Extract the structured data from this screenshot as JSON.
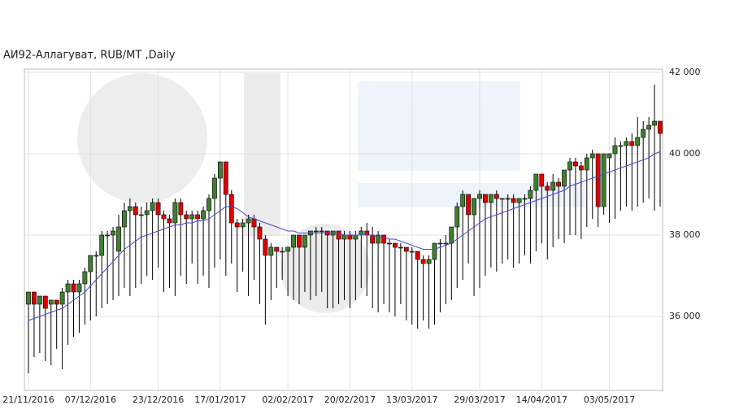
{
  "chart_data": {
    "type": "candlestick",
    "title": "АИ92-Аллагуват,  RUB/MT ,Daily",
    "ylim": [
      34180,
      42080
    ],
    "yticks": [
      {
        "value": 36000,
        "label": "36 000"
      },
      {
        "value": 38000,
        "label": "38 000"
      },
      {
        "value": 40000,
        "label": "40 000"
      },
      {
        "value": 42000,
        "label": "42 000"
      }
    ],
    "grid": true,
    "up_color": "#3f7f2f",
    "down_color": "#e00000",
    "ma_color": "#4848d0",
    "categories": [
      "21/11/2016",
      null,
      null,
      null,
      null,
      null,
      null,
      null,
      null,
      null,
      null,
      "07/12/2016",
      null,
      null,
      null,
      null,
      null,
      null,
      null,
      null,
      null,
      null,
      null,
      "23/12/2016",
      null,
      null,
      null,
      null,
      null,
      null,
      null,
      null,
      null,
      null,
      "17/01/2017",
      null,
      null,
      null,
      null,
      null,
      null,
      null,
      null,
      null,
      null,
      null,
      "02/02/2017",
      null,
      null,
      null,
      null,
      null,
      null,
      null,
      null,
      null,
      null,
      "20/02/2017",
      null,
      null,
      null,
      null,
      null,
      null,
      null,
      null,
      null,
      null,
      "13/03/2017",
      null,
      null,
      null,
      null,
      null,
      null,
      null,
      null,
      null,
      null,
      null,
      "29/03/2017",
      null,
      null,
      null,
      null,
      null,
      null,
      null,
      null,
      null,
      null,
      "14/04/2017",
      null,
      null,
      null,
      null,
      null,
      null,
      null,
      null,
      null,
      null,
      null,
      "03/05/2017",
      null,
      null,
      null,
      null,
      null,
      null,
      null,
      null,
      null
    ],
    "candles": [
      [
        36300,
        36600,
        34600,
        36600
      ],
      [
        36600,
        36600,
        35000,
        36300
      ],
      [
        36300,
        36500,
        35100,
        36500
      ],
      [
        36500,
        36500,
        34900,
        36200
      ],
      [
        36300,
        36400,
        34800,
        36400
      ],
      [
        36400,
        36400,
        35200,
        36300
      ],
      [
        36300,
        36700,
        34700,
        36600
      ],
      [
        36600,
        36900,
        35300,
        36800
      ],
      [
        36800,
        36900,
        35500,
        36600
      ],
      [
        36600,
        36900,
        35600,
        36800
      ],
      [
        36800,
        37200,
        35800,
        37100
      ],
      [
        37100,
        37500,
        35900,
        37500
      ],
      [
        37500,
        37600,
        36000,
        37500
      ],
      [
        37500,
        38100,
        36200,
        38000
      ],
      [
        38000,
        38100,
        36300,
        38000
      ],
      [
        38000,
        38200,
        36400,
        38100
      ],
      [
        37600,
        38500,
        36500,
        38200
      ],
      [
        38200,
        38800,
        36700,
        38600
      ],
      [
        38600,
        38900,
        36500,
        38700
      ],
      [
        38700,
        38800,
        36700,
        38500
      ],
      [
        38500,
        38700,
        36800,
        38500
      ],
      [
        38500,
        38800,
        37000,
        38600
      ],
      [
        38600,
        38900,
        36900,
        38800
      ],
      [
        38800,
        38900,
        37200,
        38500
      ],
      [
        38500,
        38600,
        36600,
        38400
      ],
      [
        38400,
        38500,
        36700,
        38300
      ],
      [
        38300,
        38900,
        36500,
        38800
      ],
      [
        38800,
        38900,
        37000,
        38500
      ],
      [
        38500,
        38600,
        36800,
        38400
      ],
      [
        38400,
        38600,
        37300,
        38500
      ],
      [
        38500,
        38600,
        36800,
        38400
      ],
      [
        38400,
        38700,
        37000,
        38600
      ],
      [
        38600,
        39000,
        36700,
        38900
      ],
      [
        38900,
        39500,
        37200,
        39400
      ],
      [
        39400,
        39800,
        37400,
        39800
      ],
      [
        39800,
        39800,
        37000,
        39000
      ],
      [
        39000,
        39100,
        37300,
        38300
      ],
      [
        38300,
        38400,
        36600,
        38200
      ],
      [
        38200,
        38400,
        37100,
        38300
      ],
      [
        38300,
        38500,
        36500,
        38400
      ],
      [
        38400,
        38500,
        36900,
        38200
      ],
      [
        38200,
        38300,
        36300,
        37900
      ],
      [
        37900,
        38000,
        35800,
        37500
      ],
      [
        37500,
        37800,
        36400,
        37700
      ],
      [
        37700,
        37700,
        36700,
        37600
      ],
      [
        37600,
        37700,
        36900,
        37600
      ],
      [
        37600,
        37700,
        36500,
        37700
      ],
      [
        37700,
        38000,
        36400,
        38000
      ],
      [
        38000,
        38000,
        36300,
        37700
      ],
      [
        37700,
        38000,
        36600,
        38000
      ],
      [
        38000,
        38100,
        36400,
        38100
      ],
      [
        38100,
        38200,
        36500,
        38100
      ],
      [
        38100,
        38200,
        36600,
        38100
      ],
      [
        38100,
        38100,
        36200,
        38000
      ],
      [
        38000,
        38100,
        36200,
        38100
      ],
      [
        38100,
        38100,
        36300,
        37900
      ],
      [
        37900,
        38100,
        36400,
        38000
      ],
      [
        38000,
        38100,
        36200,
        37900
      ],
      [
        37900,
        38100,
        36400,
        38000
      ],
      [
        38000,
        38200,
        36700,
        38100
      ],
      [
        38100,
        38300,
        36500,
        38000
      ],
      [
        38000,
        38200,
        36200,
        37800
      ],
      [
        37800,
        38100,
        36100,
        38000
      ],
      [
        38000,
        38000,
        36300,
        37800
      ],
      [
        37800,
        37900,
        36100,
        37800
      ],
      [
        37800,
        37800,
        36000,
        37700
      ],
      [
        37700,
        37800,
        36300,
        37700
      ],
      [
        37700,
        37700,
        35900,
        37600
      ],
      [
        37600,
        37700,
        35800,
        37600
      ],
      [
        37600,
        37600,
        35700,
        37400
      ],
      [
        37400,
        37500,
        35900,
        37300
      ],
      [
        37300,
        37500,
        35700,
        37400
      ],
      [
        37400,
        37800,
        35800,
        37800
      ],
      [
        37800,
        37900,
        36100,
        37800
      ],
      [
        37800,
        38000,
        36300,
        37800
      ],
      [
        37800,
        38200,
        36400,
        38200
      ],
      [
        38200,
        38800,
        36700,
        38700
      ],
      [
        38700,
        39100,
        36900,
        39000
      ],
      [
        39000,
        39000,
        37300,
        38500
      ],
      [
        38500,
        38900,
        36500,
        38900
      ],
      [
        38900,
        39100,
        36700,
        39000
      ],
      [
        39000,
        39000,
        37000,
        38800
      ],
      [
        38800,
        39000,
        37200,
        39000
      ],
      [
        39000,
        39100,
        37100,
        38900
      ],
      [
        38900,
        38900,
        37300,
        38900
      ],
      [
        38900,
        39000,
        37400,
        38900
      ],
      [
        38900,
        39000,
        37200,
        38800
      ],
      [
        38800,
        38900,
        37300,
        38900
      ],
      [
        38900,
        39000,
        37500,
        38900
      ],
      [
        38900,
        39200,
        37300,
        39100
      ],
      [
        39100,
        39500,
        37600,
        39500
      ],
      [
        39500,
        39500,
        37800,
        39200
      ],
      [
        39200,
        39300,
        37400,
        39100
      ],
      [
        39100,
        39500,
        37700,
        39300
      ],
      [
        39300,
        39400,
        37900,
        39200
      ],
      [
        39200,
        39600,
        37800,
        39600
      ],
      [
        39600,
        39900,
        38000,
        39800
      ],
      [
        39800,
        39900,
        38000,
        39700
      ],
      [
        39700,
        39800,
        37900,
        39600
      ],
      [
        39600,
        40000,
        38200,
        39900
      ],
      [
        39900,
        40100,
        38400,
        40000
      ],
      [
        40000,
        40000,
        38200,
        38700
      ],
      [
        38700,
        40000,
        38500,
        40000
      ],
      [
        39900,
        40000,
        38300,
        40000
      ],
      [
        40000,
        40400,
        38400,
        40200
      ],
      [
        40200,
        40300,
        38600,
        40200
      ],
      [
        40200,
        40400,
        38700,
        40300
      ],
      [
        40300,
        40500,
        38600,
        40200
      ],
      [
        40200,
        40900,
        38700,
        40400
      ],
      [
        40400,
        40800,
        38800,
        40600
      ],
      [
        40600,
        40900,
        38900,
        40700
      ],
      [
        40700,
        41700,
        38600,
        40800
      ],
      [
        40800,
        40800,
        38700,
        40500
      ]
    ],
    "moving_average": [
      35900,
      35950,
      36000,
      36050,
      36100,
      36150,
      36200,
      36300,
      36400,
      36500,
      36600,
      36750,
      36900,
      37050,
      37200,
      37350,
      37500,
      37650,
      37750,
      37850,
      37950,
      38000,
      38050,
      38100,
      38150,
      38200,
      38250,
      38250,
      38300,
      38300,
      38350,
      38350,
      38400,
      38500,
      38600,
      38700,
      38700,
      38650,
      38550,
      38450,
      38400,
      38350,
      38300,
      38250,
      38200,
      38150,
      38100,
      38100,
      38050,
      38050,
      38050,
      38050,
      38050,
      38050,
      38050,
      38050,
      38000,
      38000,
      38000,
      38000,
      38000,
      38000,
      37950,
      37950,
      37900,
      37900,
      37850,
      37800,
      37750,
      37700,
      37650,
      37650,
      37650,
      37700,
      37750,
      37800,
      37900,
      38000,
      38100,
      38200,
      38300,
      38400,
      38450,
      38500,
      38550,
      38600,
      38650,
      38700,
      38750,
      38800,
      38850,
      38900,
      38950,
      39000,
      39050,
      39100,
      39200,
      39250,
      39300,
      39350,
      39400,
      39450,
      39500,
      39550,
      39600,
      39650,
      39700,
      39750,
      39800,
      39850,
      39900,
      40000,
      40050
    ]
  }
}
